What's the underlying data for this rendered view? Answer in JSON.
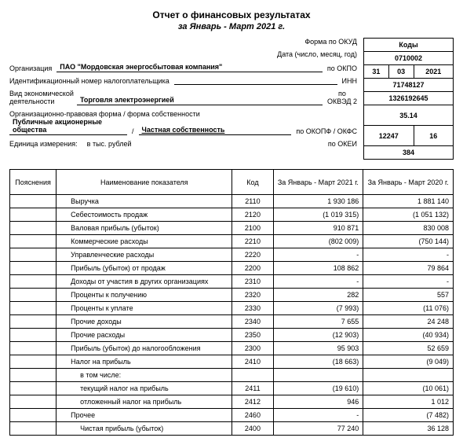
{
  "title": "Отчет о финансовых результатах",
  "subtitle": "за Январь - Март 2021 г.",
  "header": {
    "okud_label": "Форма по ОКУД",
    "date_label": "Дата (число, месяц, год)",
    "org_label": "Организация",
    "org_value": "ПАО \"Мордовская энергосбытовая компания\"",
    "okpo_label": "по ОКПО",
    "inn_label": "Идентификационный номер налогоплательщика",
    "inn_code_label": "ИНН",
    "activity_label1": "Вид экономической",
    "activity_label2": "деятельности",
    "activity_value": "Торговля электроэнергией",
    "okved_label": "по\nОКВЭД 2",
    "form_label": "Организационно-правовая форма / форма собственности",
    "form_value1": "Публичные акционерные общества",
    "form_value2": "Частная собственность",
    "okopf_label": "по ОКОПФ / ОКФС",
    "unit_label": "Единица измерения:",
    "unit_value": "в тыс. рублей",
    "okei_label": "по ОКЕИ"
  },
  "codes": {
    "header": "Коды",
    "okud": "0710002",
    "date_d": "31",
    "date_m": "03",
    "date_y": "2021",
    "okpo": "71748127",
    "inn": "1326192645",
    "okved": "35.14",
    "okopf": "12247",
    "okfs": "16",
    "okei": "384"
  },
  "table_headers": {
    "expl": "Пояснения",
    "name": "Наименование показателя",
    "code": "Код",
    "period1": "За Январь - Март 2021 г.",
    "period2": "За Январь - Март 2020 г."
  },
  "rows": [
    {
      "name": "Выручка",
      "code": "2110",
      "v1": "1 930 186",
      "v2": "1 881 140",
      "indent": 1
    },
    {
      "name": "Себестоимость продаж",
      "code": "2120",
      "v1": "(1 019 315)",
      "v2": "(1 051 132)",
      "indent": 1
    },
    {
      "name": "Валовая прибыль (убыток)",
      "code": "2100",
      "v1": "910 871",
      "v2": "830 008",
      "indent": 1
    },
    {
      "name": "Коммерческие расходы",
      "code": "2210",
      "v1": "(802 009)",
      "v2": "(750 144)",
      "indent": 1
    },
    {
      "name": "Управленческие расходы",
      "code": "2220",
      "v1": "-",
      "v2": "-",
      "indent": 1
    },
    {
      "name": "Прибыль (убыток) от продаж",
      "code": "2200",
      "v1": "108 862",
      "v2": "79 864",
      "indent": 1
    },
    {
      "name": "Доходы от участия в других организациях",
      "code": "2310",
      "v1": "-",
      "v2": "-",
      "indent": 1
    },
    {
      "name": "Проценты к получению",
      "code": "2320",
      "v1": "282",
      "v2": "557",
      "indent": 1
    },
    {
      "name": "Проценты к уплате",
      "code": "2330",
      "v1": "(7 993)",
      "v2": "(11 076)",
      "indent": 1
    },
    {
      "name": "Прочие доходы",
      "code": "2340",
      "v1": "7 655",
      "v2": "24 248",
      "indent": 1
    },
    {
      "name": "Прочие расходы",
      "code": "2350",
      "v1": "(12 903)",
      "v2": "(40 934)",
      "indent": 1
    },
    {
      "name": "Прибыль (убыток) до налогообложения",
      "code": "2300",
      "v1": "95 903",
      "v2": "52 659",
      "indent": 1
    },
    {
      "name": "Налог на прибыль",
      "code": "2410",
      "v1": "(18 663)",
      "v2": "(9 049)",
      "indent": 1
    },
    {
      "name": "в том числе:",
      "code": "",
      "v1": "",
      "v2": "",
      "indent": 2
    },
    {
      "name": "текущий налог на прибыль",
      "code": "2411",
      "v1": "(19 610)",
      "v2": "(10 061)",
      "indent": 2
    },
    {
      "name": "отложенный налог на прибыль",
      "code": "2412",
      "v1": "946",
      "v2": "1 012",
      "indent": 2
    },
    {
      "name": "Прочее",
      "code": "2460",
      "v1": "-",
      "v2": "(7 482)",
      "indent": 1
    },
    {
      "name": "Чистая прибыль (убыток)",
      "code": "2400",
      "v1": "77 240",
      "v2": "36 128",
      "indent": 2
    }
  ]
}
